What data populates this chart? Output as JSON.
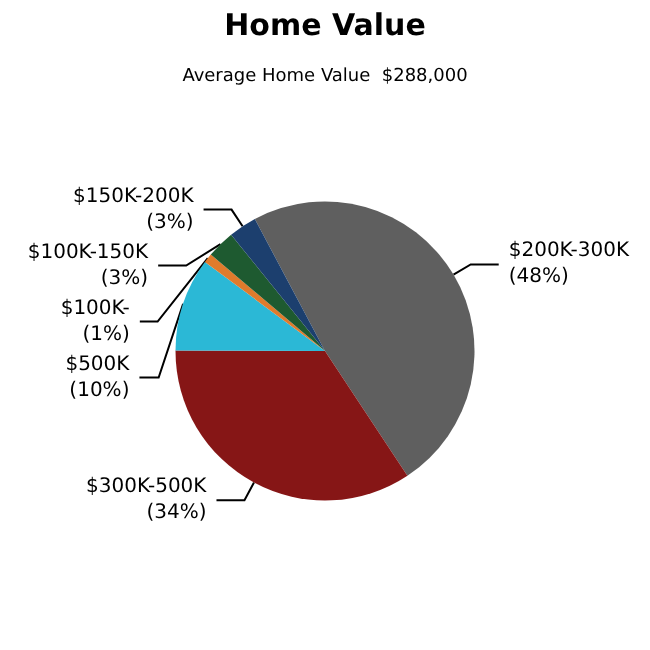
{
  "chart_data": {
    "type": "pie",
    "title": "Home Value",
    "subtitle": "Average Home Value  $288,000",
    "categories": [
      "$200K-300K",
      "$300K-500K",
      "$500K",
      "$100K-",
      "$100K-150K",
      "$150K-200K"
    ],
    "values": [
      48,
      34,
      10,
      1,
      3,
      3
    ],
    "value_labels": [
      "(48%)",
      "(34%)",
      "(10%)",
      "(1%)",
      "(3%)",
      "(3%)"
    ],
    "colors": [
      "#5f5f5f",
      "#861616",
      "#2bb8d6",
      "#e07b2c",
      "#1e5a30",
      "#1c3f6e"
    ]
  }
}
